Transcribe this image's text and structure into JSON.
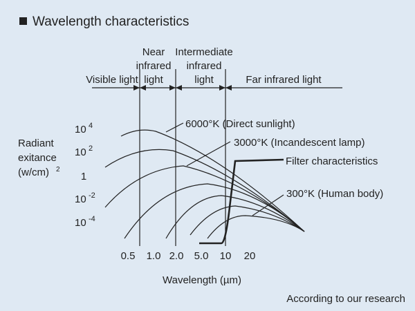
{
  "header": {
    "title": "Wavelength characteristics"
  },
  "regions": [
    {
      "lines": [
        "Visible light"
      ]
    },
    {
      "lines": [
        "Near",
        "infrared",
        "light"
      ]
    },
    {
      "lines": [
        "Intermediate",
        "infrared",
        "light"
      ]
    },
    {
      "lines": [
        "Far infrared light"
      ]
    }
  ],
  "y_axis": {
    "label_lines": [
      "Radiant",
      "exitance",
      "(w/cm)"
    ],
    "label_sup": "2",
    "ticks": [
      {
        "base": "10",
        "exp": "4"
      },
      {
        "base": "10",
        "exp": "2"
      },
      {
        "base": "1",
        "exp": ""
      },
      {
        "base": "10",
        "exp": "-2"
      },
      {
        "base": "10",
        "exp": "-4"
      }
    ]
  },
  "x_axis": {
    "label": "Wavelength (µm)",
    "ticks": [
      "0.5",
      "1.0",
      "2.0",
      "5.0",
      "10",
      "20"
    ]
  },
  "annotations": [
    "6000°K (Direct sunlight)",
    "3000°K (Incandescent lamp)",
    "Filter characteristics",
    "300°K (Human body)"
  ],
  "footer": "According to our research"
}
